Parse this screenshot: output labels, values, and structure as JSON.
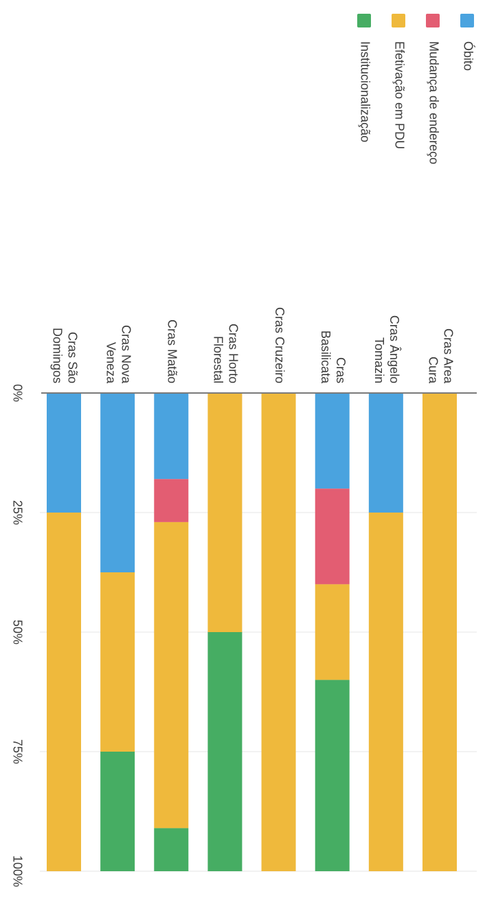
{
  "chart_data": {
    "type": "bar",
    "stacked": true,
    "orientation": "horizontal (stacked 100%), image rotated 90° clockwise",
    "categories": [
      [
        "Cras Area",
        "Cura"
      ],
      [
        "Cras Ângelo",
        "Tomazin"
      ],
      [
        "Cras",
        "Basilicata"
      ],
      [
        "Cras Cruzeiro"
      ],
      [
        "Cras Horto",
        "Florestal"
      ],
      [
        "Cras Matão"
      ],
      [
        "Cras Nova",
        "Veneza"
      ],
      [
        "Cras São",
        "Domingos"
      ]
    ],
    "series": [
      {
        "name": "Óbito",
        "color": "#4aa3df",
        "values": [
          0,
          25,
          20,
          0,
          0,
          18,
          37.5,
          25
        ]
      },
      {
        "name": "Mudança de endereço",
        "color": "#e35d72",
        "values": [
          0,
          0,
          20,
          0,
          0,
          9,
          0,
          0
        ]
      },
      {
        "name": "Efetivação em PDU",
        "color": "#efb93c",
        "values": [
          100,
          75,
          20,
          100,
          50,
          64,
          37.5,
          75
        ]
      },
      {
        "name": "Institucionalização",
        "color": "#46ad63",
        "values": [
          0,
          0,
          40,
          0,
          50,
          9,
          25,
          0
        ]
      }
    ],
    "value_axis": {
      "range": [
        0,
        100
      ],
      "ticks": [
        "0%",
        "25%",
        "50%",
        "75%",
        "100%"
      ],
      "grid": true
    },
    "legend": {
      "placement": "top-right"
    }
  }
}
